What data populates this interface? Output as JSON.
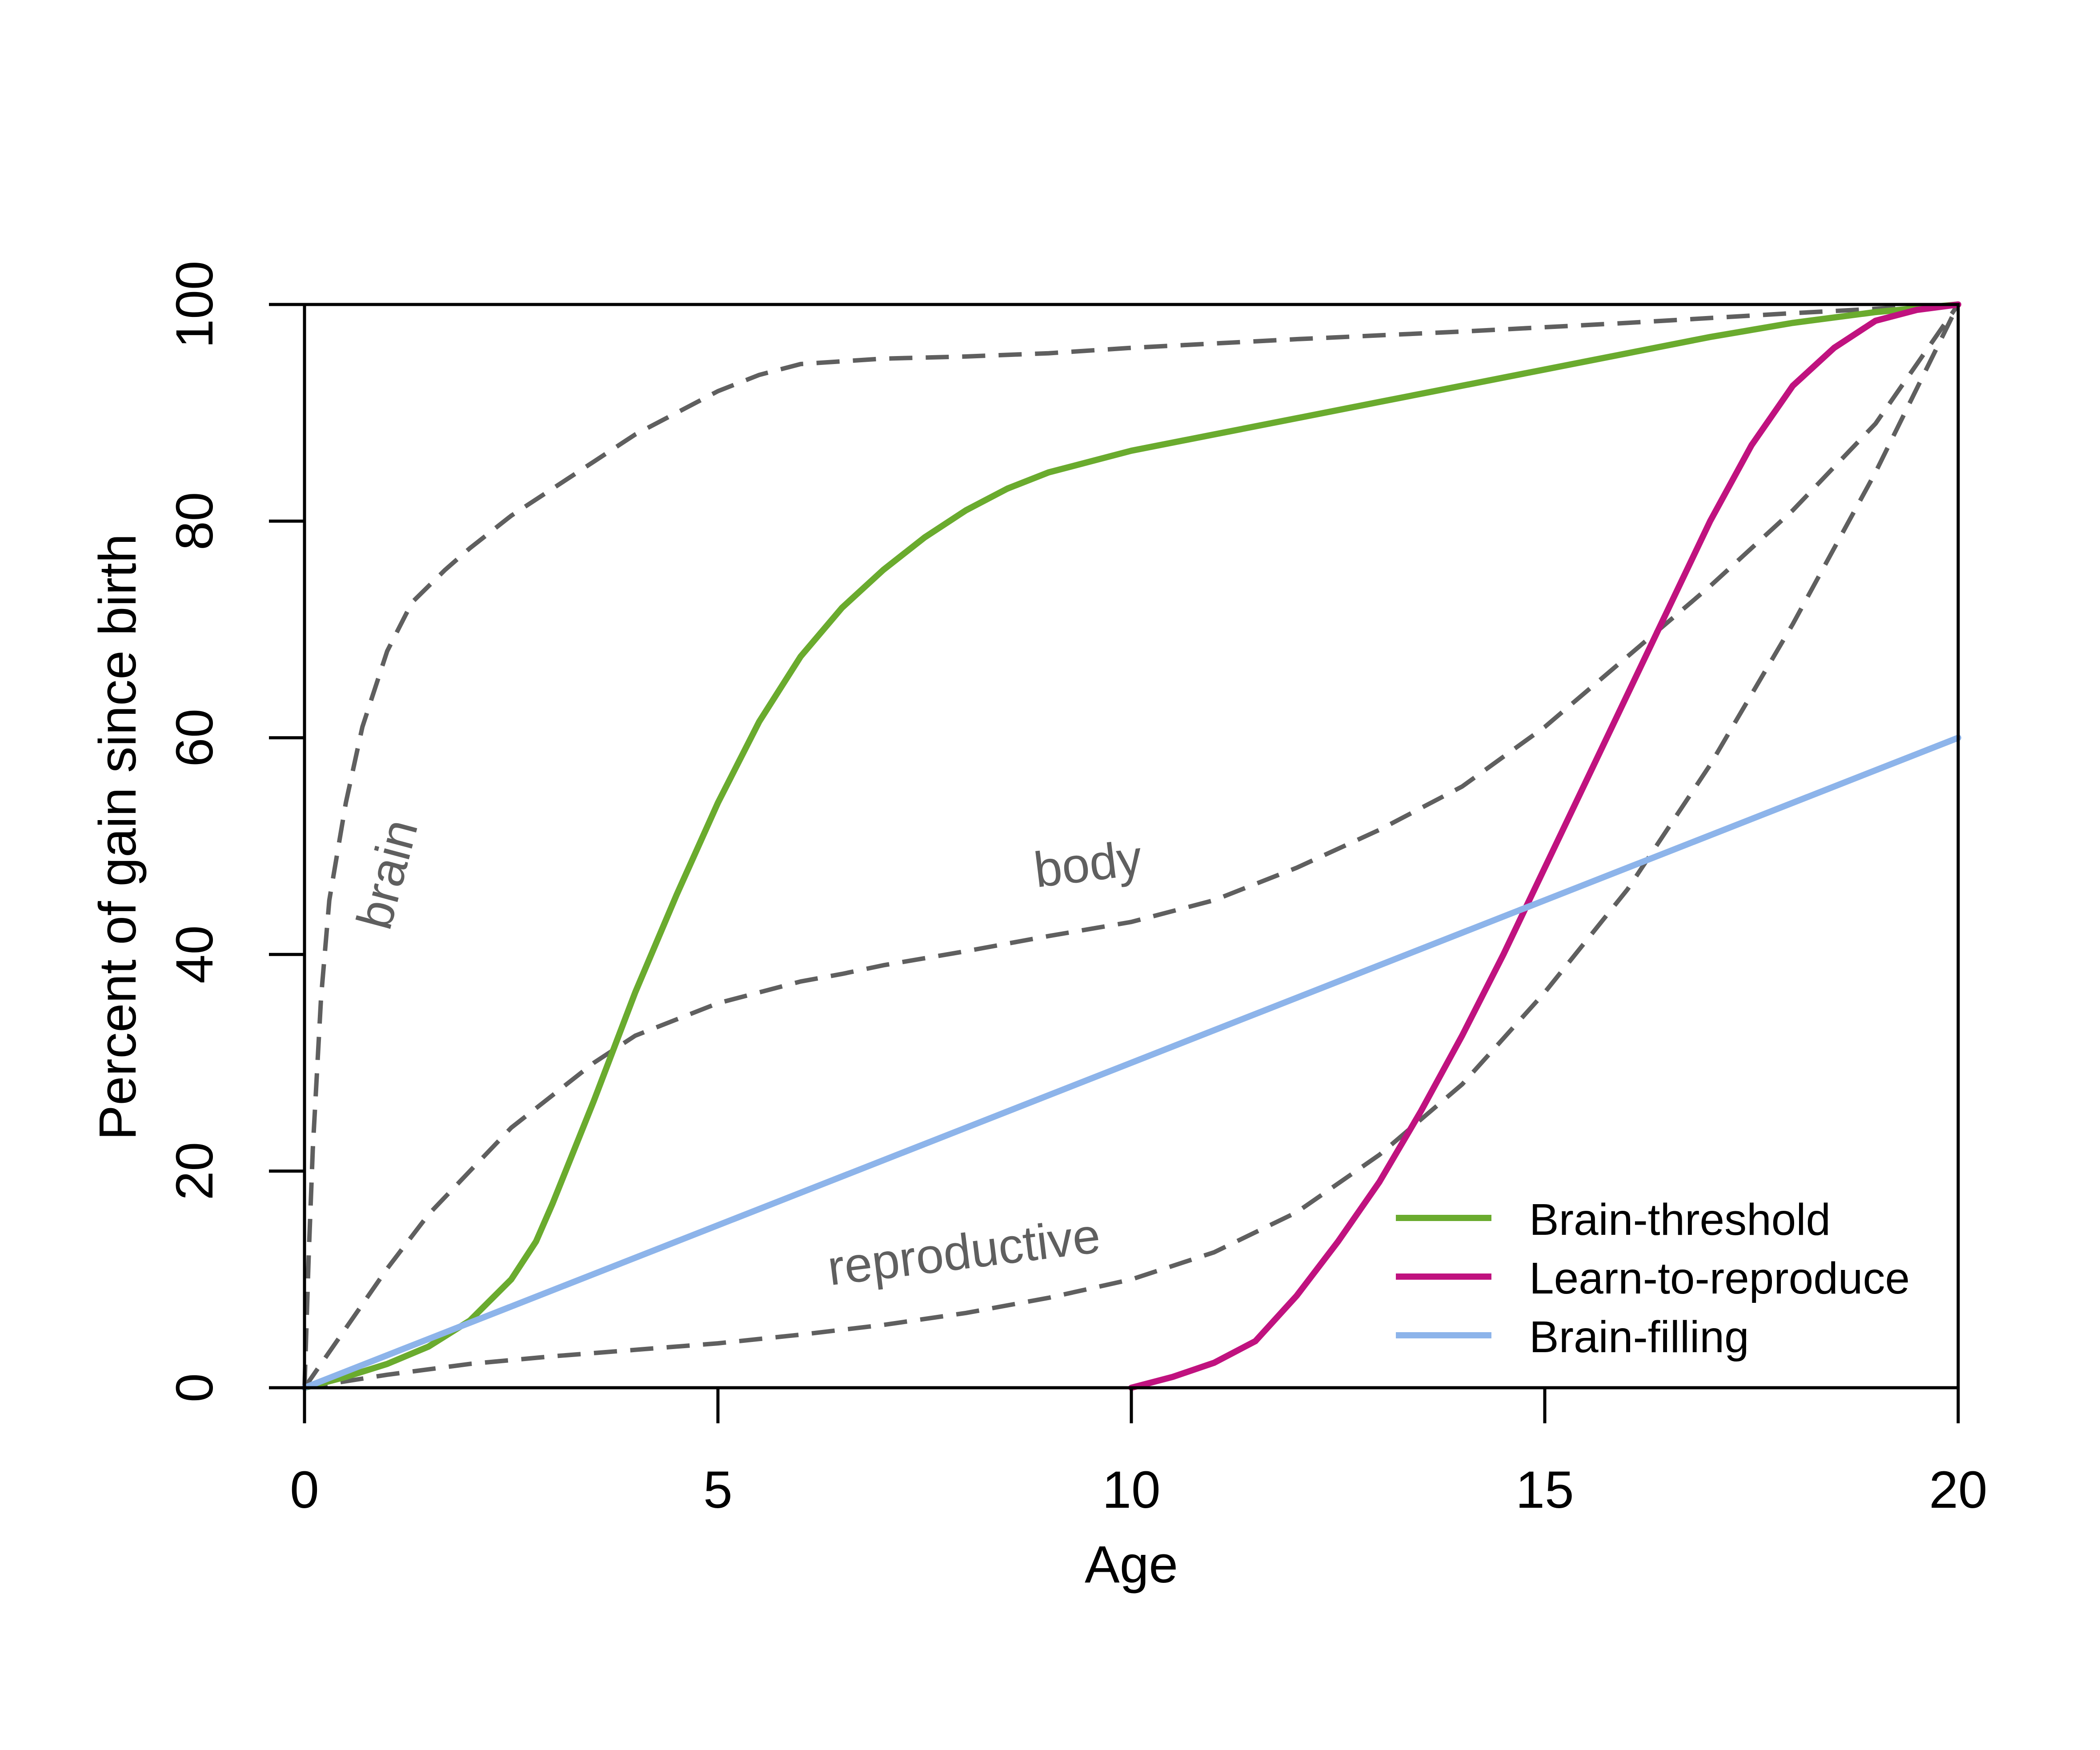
{
  "chart_data": {
    "type": "line",
    "title": "",
    "xlabel": "Age",
    "ylabel": "Percent of gain since birth",
    "xlim": [
      0,
      20
    ],
    "ylim": [
      0,
      100
    ],
    "xticks": [
      0,
      5,
      10,
      15,
      20
    ],
    "yticks": [
      0,
      20,
      40,
      60,
      80,
      100
    ],
    "xtick_labels": [
      "0",
      "5",
      "10",
      "15",
      "20"
    ],
    "ytick_labels": [
      "0",
      "20",
      "40",
      "60",
      "80",
      "100"
    ],
    "grid": false,
    "legend": {
      "position": "bottom-right",
      "entries": [
        "Brain-threshold",
        "Learn-to-reproduce",
        "Brain-filling"
      ]
    },
    "series": [
      {
        "name": "Brain-threshold",
        "color": "#6aab2e",
        "style": "solid",
        "x": [
          0,
          0.5,
          1,
          1.5,
          2,
          2.5,
          2.8,
          3,
          3.5,
          4,
          4.5,
          5,
          5.5,
          6,
          6.5,
          7,
          7.5,
          8,
          8.5,
          9,
          9.5,
          10,
          11,
          12,
          13,
          14,
          15,
          16,
          17,
          18,
          19,
          20
        ],
        "y": [
          0,
          1,
          2.2,
          3.8,
          6.2,
          10,
          13.5,
          17,
          26.5,
          36.5,
          45.5,
          54,
          61.5,
          67.5,
          72,
          75.5,
          78.5,
          81,
          83,
          84.5,
          85.5,
          86.5,
          88,
          89.5,
          91,
          92.5,
          94,
          95.5,
          97,
          98.3,
          99.3,
          100
        ]
      },
      {
        "name": "Learn-to-reproduce",
        "color": "#c0127f",
        "style": "solid",
        "x": [
          10,
          10.5,
          11,
          11.5,
          12,
          12.5,
          13,
          13.5,
          14,
          14.5,
          15,
          15.5,
          16,
          16.5,
          17,
          17.5,
          18,
          18.5,
          19,
          19.5,
          20
        ],
        "y": [
          0,
          1,
          2.3,
          4.3,
          8.5,
          13.5,
          19,
          25.5,
          32.5,
          40,
          48,
          56,
          64,
          72,
          80,
          87,
          92.5,
          96,
          98.5,
          99.5,
          100
        ]
      },
      {
        "name": "Brain-filling",
        "color": "#8db4ea",
        "style": "solid",
        "x": [
          0,
          20
        ],
        "y": [
          0,
          60
        ]
      }
    ],
    "reference_curves": [
      {
        "label": "brain",
        "color": "#5f5f5f",
        "style": "dashed",
        "x": [
          0,
          0.05,
          0.1,
          0.2,
          0.3,
          0.5,
          0.7,
          1,
          1.3,
          1.7,
          2,
          2.5,
          3,
          3.5,
          4,
          4.5,
          5,
          5.5,
          6,
          7,
          8,
          9,
          10,
          12,
          14,
          16,
          18,
          20
        ],
        "y": [
          0,
          12,
          22,
          36,
          45,
          54,
          61,
          68,
          72.5,
          75.5,
          77.5,
          80.5,
          83,
          85.5,
          88,
          90,
          92,
          93.5,
          94.5,
          95,
          95.2,
          95.5,
          96,
          96.8,
          97.5,
          98.3,
          99.2,
          100
        ]
      },
      {
        "label": "body",
        "color": "#5f5f5f",
        "style": "dashed",
        "x": [
          0,
          0.5,
          1,
          1.5,
          2,
          2.5,
          3,
          3.5,
          4,
          4.5,
          5,
          5.5,
          6,
          6.5,
          7,
          8,
          9,
          10,
          11,
          12,
          13,
          14,
          15,
          16,
          17,
          18,
          19,
          20
        ],
        "y": [
          0,
          5.5,
          11,
          16,
          20,
          24,
          27,
          30,
          32.5,
          34,
          35.5,
          36.5,
          37.5,
          38.2,
          39,
          40.3,
          41.7,
          43,
          45,
          48,
          51.5,
          55.5,
          61,
          67.5,
          74,
          81,
          89,
          100
        ]
      },
      {
        "label": "reproductive",
        "color": "#5f5f5f",
        "style": "dashed",
        "x": [
          0,
          1,
          2,
          3,
          4,
          5,
          6,
          7,
          8,
          9,
          10,
          11,
          12,
          13,
          14,
          15,
          16,
          17,
          18,
          19,
          20
        ],
        "y": [
          0,
          1.2,
          2.2,
          2.9,
          3.5,
          4.1,
          4.9,
          5.8,
          6.9,
          8.3,
          10,
          12.5,
          16.2,
          21.5,
          28,
          36.5,
          46,
          57.5,
          70.5,
          84.5,
          100
        ]
      }
    ],
    "annotations": [
      {
        "text": "brain",
        "x": 1.2,
        "y": 47,
        "rotation": -75
      },
      {
        "text": "body",
        "x": 9.5,
        "y": 46.8,
        "rotation": -7
      },
      {
        "text": "reproductive",
        "x": 8,
        "y": 11,
        "rotation": -7
      }
    ]
  }
}
